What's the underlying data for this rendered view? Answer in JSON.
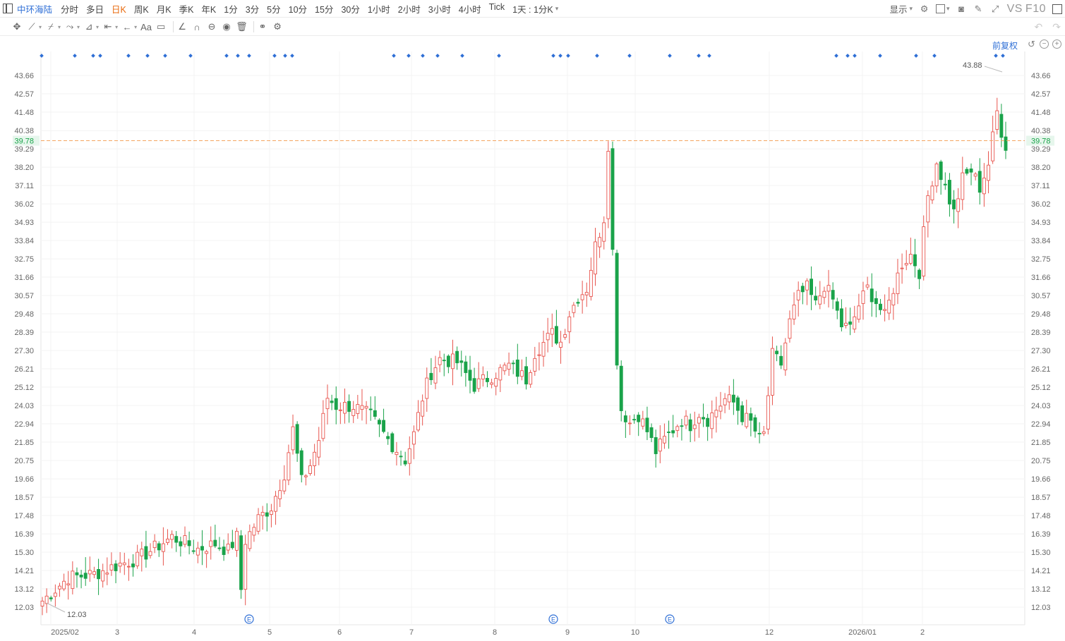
{
  "toolbar": {
    "symbol": "中环海陆",
    "periods": [
      "分时",
      "多日",
      "日K",
      "周K",
      "月K",
      "季K",
      "年K",
      "1分",
      "3分",
      "5分",
      "10分",
      "15分",
      "30分",
      "1小时",
      "2小时",
      "3小时",
      "4小时",
      "Tick"
    ],
    "active_period": "日K",
    "interval": "1天 : 1分K",
    "display_label": "显示",
    "vs_label": "VS",
    "f10_label": "F10",
    "adjust_label": "前复权"
  },
  "tools": [
    "move-tool",
    "line-tool",
    "fib-tool",
    "pattern-tool",
    "measure-tool",
    "range-tool",
    "arrow-tool",
    "text-tool",
    "note-tool",
    "angle-tool",
    "magnet-tool",
    "visibility-tool",
    "lock-tool",
    "delete-tool",
    "compare-tool",
    "settings-tool"
  ],
  "tool_glyphs": [
    "✥",
    "⟋",
    "⌿",
    "⤳",
    "⊿",
    "⇤",
    "←",
    "Aa",
    "▭",
    "∠",
    "∩",
    "⊖",
    "◉",
    "🗑",
    "⚭",
    "⚙"
  ],
  "colors": {
    "up": "#e8554e",
    "down": "#1aa34a",
    "blue": "#2f6fd6",
    "dash": "#f4a460",
    "current_bg": "#e6f6ec",
    "current_text": "#1aa34a"
  },
  "chart_data": {
    "type": "candlestick",
    "y_ticks": [
      "43.66",
      "42.57",
      "41.48",
      "40.38",
      "39.29",
      "38.20",
      "37.11",
      "36.02",
      "34.93",
      "33.84",
      "32.75",
      "31.66",
      "30.57",
      "29.48",
      "28.39",
      "27.30",
      "26.21",
      "25.12",
      "24.03",
      "22.94",
      "21.85",
      "20.75",
      "19.66",
      "18.57",
      "17.48",
      "16.39",
      "15.30",
      "14.21",
      "13.12",
      "12.03"
    ],
    "ylim": [
      12.03,
      43.66
    ],
    "x_labels": [
      "2025/02",
      "3",
      "4",
      "5",
      "6",
      "7",
      "8",
      "9",
      "10",
      "12",
      "2026/01",
      "2"
    ],
    "current_price": "39.78",
    "high_label": "43.88",
    "low_label": "12.03",
    "event_marker": "E",
    "anchors": [
      [
        0,
        12.4
      ],
      [
        6,
        13.8
      ],
      [
        12,
        14.0
      ],
      [
        18,
        14.6
      ],
      [
        22,
        14.9
      ],
      [
        30,
        16.2
      ],
      [
        36,
        15.5
      ],
      [
        40,
        15.8
      ],
      [
        43,
        15.4
      ],
      [
        45,
        16.2
      ],
      [
        46,
        13.1
      ],
      [
        47,
        16.0
      ],
      [
        50,
        17.3
      ],
      [
        53,
        18.0
      ],
      [
        56,
        20.0
      ],
      [
        58,
        22.6
      ],
      [
        60,
        19.5
      ],
      [
        62,
        20.5
      ],
      [
        64,
        22.0
      ],
      [
        66,
        24.5
      ],
      [
        68,
        24.0
      ],
      [
        72,
        24.0
      ],
      [
        76,
        23.4
      ],
      [
        80,
        22.0
      ],
      [
        84,
        20.8
      ],
      [
        86,
        22.3
      ],
      [
        88,
        24.5
      ],
      [
        90,
        26.0
      ],
      [
        92,
        26.8
      ],
      [
        96,
        26.6
      ],
      [
        100,
        25.2
      ],
      [
        104,
        25.8
      ],
      [
        108,
        26.4
      ],
      [
        112,
        25.6
      ],
      [
        114,
        27.2
      ],
      [
        118,
        28.3
      ],
      [
        120,
        27.8
      ],
      [
        122,
        29.5
      ],
      [
        124,
        30.5
      ],
      [
        126,
        31.0
      ],
      [
        128,
        33.5
      ],
      [
        130,
        35.2
      ],
      [
        131,
        39.6
      ],
      [
        133,
        26.8
      ],
      [
        134,
        23.8
      ],
      [
        136,
        23.0
      ],
      [
        138,
        23.5
      ],
      [
        140,
        22.5
      ],
      [
        142,
        21.3
      ],
      [
        144,
        22.0
      ],
      [
        146,
        22.6
      ],
      [
        148,
        23.2
      ],
      [
        150,
        22.9
      ],
      [
        152,
        23.6
      ],
      [
        154,
        23.2
      ],
      [
        156,
        23.8
      ],
      [
        158,
        24.4
      ],
      [
        160,
        24.2
      ],
      [
        162,
        23.4
      ],
      [
        164,
        23.0
      ],
      [
        166,
        22.0
      ],
      [
        167,
        22.3
      ],
      [
        169,
        27.0
      ],
      [
        171,
        26.5
      ],
      [
        173,
        29.0
      ],
      [
        175,
        30.5
      ],
      [
        177,
        31.0
      ],
      [
        179,
        30.0
      ],
      [
        181,
        31.2
      ],
      [
        183,
        30.3
      ],
      [
        185,
        28.8
      ],
      [
        187,
        28.6
      ],
      [
        189,
        30.0
      ],
      [
        191,
        31.0
      ],
      [
        193,
        30.2
      ],
      [
        195,
        29.3
      ],
      [
        197,
        31.0
      ],
      [
        199,
        32.5
      ],
      [
        201,
        33.0
      ],
      [
        203,
        32.0
      ],
      [
        205,
        36.5
      ],
      [
        207,
        38.5
      ],
      [
        209,
        37.0
      ],
      [
        211,
        35.5
      ],
      [
        213,
        37.5
      ],
      [
        215,
        38.0
      ],
      [
        217,
        37.0
      ],
      [
        219,
        38.4
      ],
      [
        221,
        41.5
      ],
      [
        223,
        39.2
      ]
    ]
  },
  "dot_positions": [
    59,
    106,
    132,
    142,
    182,
    209,
    234,
    270,
    321,
    337,
    353,
    389,
    404,
    414,
    558,
    579,
    599,
    620,
    655,
    707,
    784,
    794,
    805,
    846,
    892,
    949,
    990,
    1005,
    1185,
    1201,
    1211,
    1247,
    1298,
    1324,
    1411,
    1421
  ],
  "event_positions": [
    353,
    784,
    949
  ]
}
